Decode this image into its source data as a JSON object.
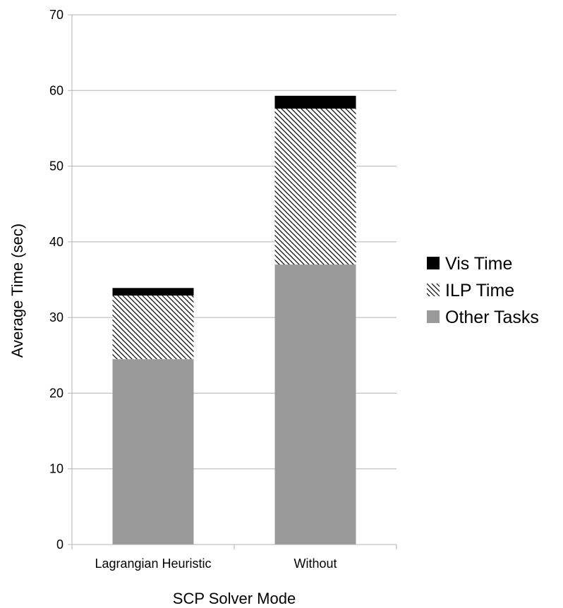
{
  "chart_data": {
    "type": "bar",
    "stacked": true,
    "title": "",
    "xlabel": "SCP Solver Mode",
    "ylabel": "Average Time (sec)",
    "ylim": [
      0,
      70
    ],
    "yticks": [
      0,
      10,
      20,
      30,
      40,
      50,
      60,
      70
    ],
    "grid": true,
    "legend_position": "right",
    "categories": [
      "Lagrangian Heuristic",
      "Without"
    ],
    "series": [
      {
        "name": "Other Tasks",
        "values": [
          24.5,
          37.0
        ],
        "color": "#999999",
        "pattern": "solid"
      },
      {
        "name": "ILP Time",
        "values": [
          8.4,
          20.6
        ],
        "color": "#000000",
        "pattern": "diagonal-hatch"
      },
      {
        "name": "Vis Time",
        "values": [
          1.0,
          1.7
        ],
        "color": "#000000",
        "pattern": "solid"
      }
    ]
  }
}
